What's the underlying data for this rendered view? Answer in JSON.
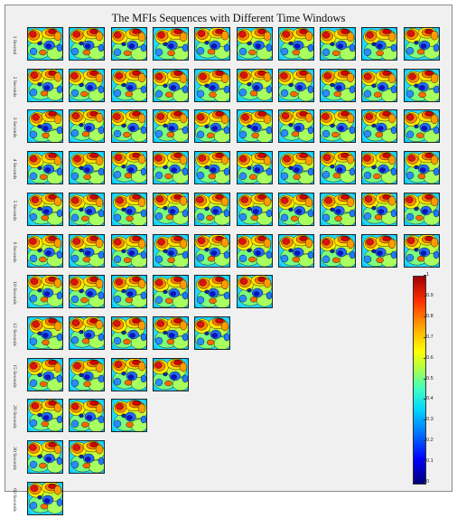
{
  "figure": {
    "title": "The MFIs Sequences with Different Time Windows",
    "rows": [
      {
        "label": "1 Second",
        "maps": 10
      },
      {
        "label": "2 Seconds",
        "maps": 10
      },
      {
        "label": "3 Seconds",
        "maps": 10
      },
      {
        "label": "4 Seconds",
        "maps": 10
      },
      {
        "label": "5 Seconds",
        "maps": 10
      },
      {
        "label": "6 Seconds",
        "maps": 10
      },
      {
        "label": "10 Seconds",
        "maps": 6
      },
      {
        "label": "12 Seconds",
        "maps": 5
      },
      {
        "label": "15 Seconds",
        "maps": 4
      },
      {
        "label": "20 Seconds",
        "maps": 3
      },
      {
        "label": "30 Seconds",
        "maps": 2
      },
      {
        "label": "60 Seconds",
        "maps": 1
      }
    ],
    "colorbar": {
      "min": 0,
      "max": 1,
      "ticks": [
        "0",
        "0.1",
        "0.2",
        "0.3",
        "0.4",
        "0.5",
        "0.6",
        "0.7",
        "0.8",
        "0.9",
        "1"
      ],
      "colors": {
        "low": "#00007a",
        "mid": "#40ffc0",
        "high": "#a00000"
      }
    }
  }
}
